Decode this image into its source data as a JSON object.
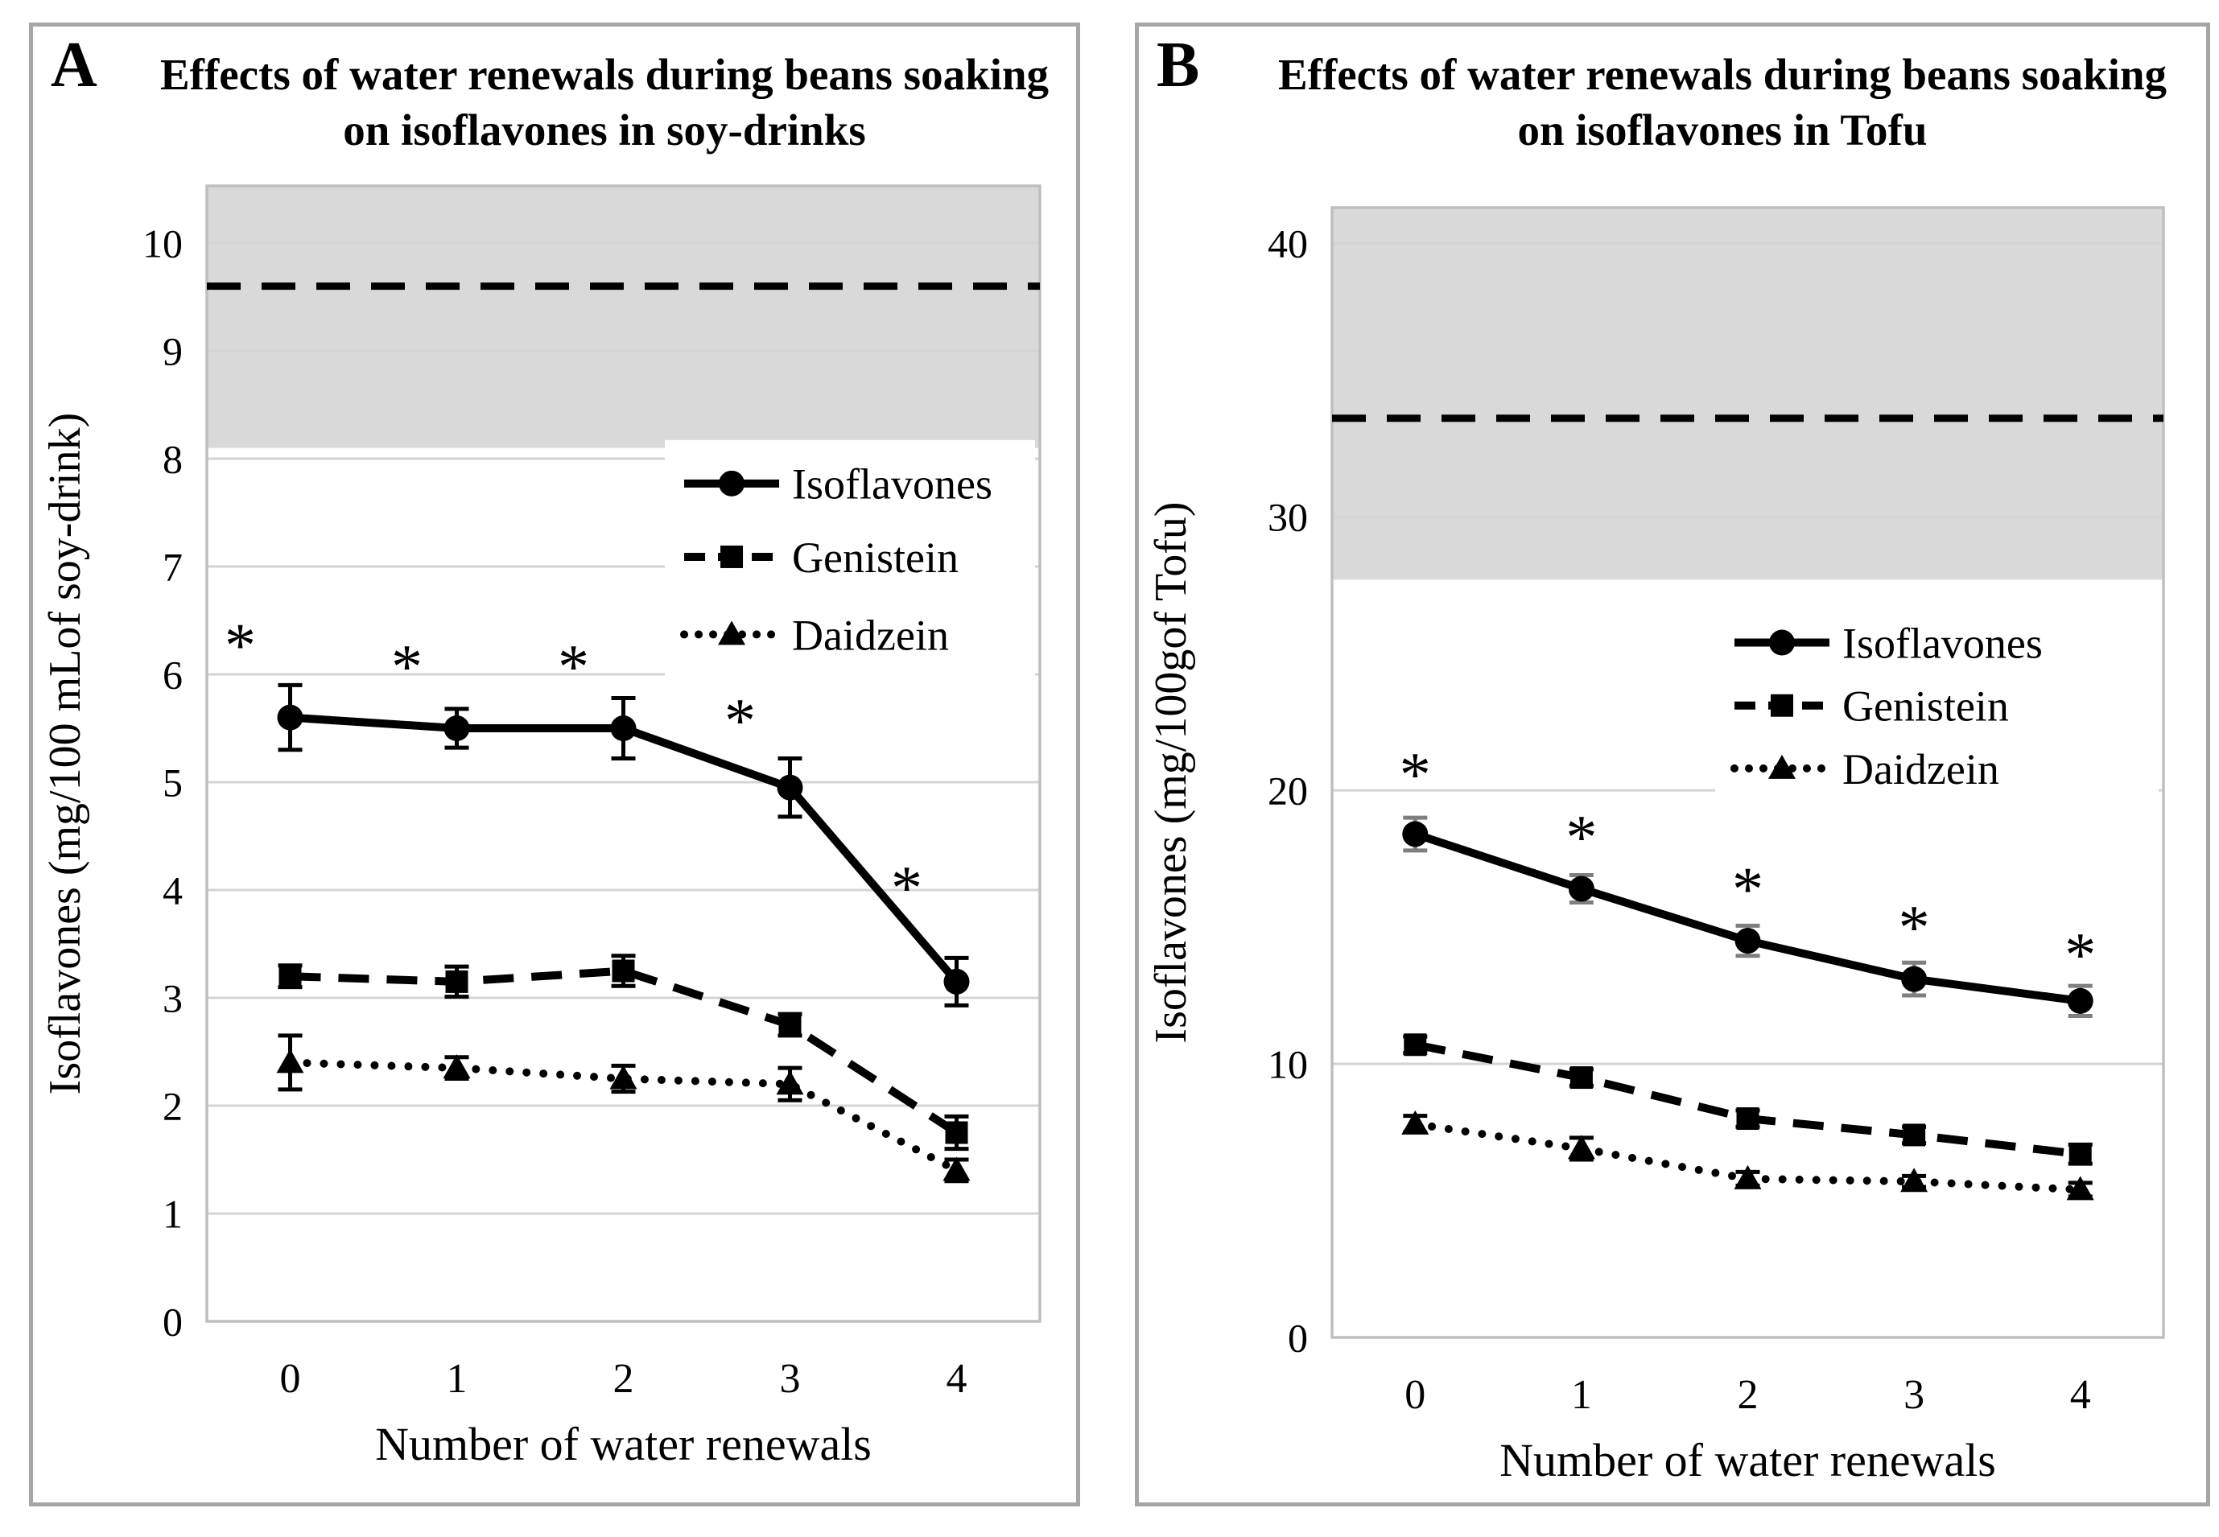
{
  "panels": [
    {
      "label": "A"
    },
    {
      "label": "B"
    }
  ],
  "colors": {
    "series": "#000000",
    "band_fill": "#d9d9d9",
    "gridline": "#d4d4d4",
    "plot_border": "#bfbfbf",
    "panel_border": "#a6a6a6",
    "error_bar_b_isoflavones": "#7f7f7f"
  },
  "chart_data": [
    {
      "type": "line",
      "title": "Effects of water renewals during beans soaking on isoflavones in soy-drinks",
      "xlabel": "Number of water renewals",
      "ylabel": "Isoflavones (mg/100 mLof soy-drink)",
      "categories": [
        "0",
        "1",
        "2",
        "3",
        "4"
      ],
      "ytick_labels": [
        "0",
        "1",
        "2",
        "3",
        "4",
        "5",
        "6",
        "7",
        "8",
        "9",
        "10"
      ],
      "yticks": [
        0,
        1,
        2,
        3,
        4,
        5,
        6,
        7,
        8,
        9,
        10
      ],
      "ylim": [
        0,
        10.53
      ],
      "grid": true,
      "legend_position": "inside-upper-right",
      "shaded_band": {
        "from": 8.1,
        "to": 10.53
      },
      "reference_line": {
        "y": 9.6,
        "style": "dashed"
      },
      "series": [
        {
          "name": "Isoflavones",
          "marker": "circle",
          "line": "solid",
          "values": [
            5.6,
            5.5,
            5.5,
            4.95,
            3.15
          ],
          "errors": [
            0.3,
            0.18,
            0.28,
            0.27,
            0.22
          ],
          "error_color": "#000000"
        },
        {
          "name": "Genistein",
          "marker": "square",
          "line": "dashed",
          "values": [
            3.2,
            3.15,
            3.25,
            2.75,
            1.75
          ],
          "errors": [
            0.1,
            0.14,
            0.14,
            0.1,
            0.15
          ],
          "error_color": "#000000"
        },
        {
          "name": "Daidzein",
          "marker": "triangle",
          "line": "dotted",
          "values": [
            2.4,
            2.35,
            2.25,
            2.2,
            1.4
          ],
          "errors": [
            0.25,
            0.1,
            0.12,
            0.15,
            0.1
          ],
          "error_color": "#000000"
        }
      ],
      "significance_marks": {
        "symbol": "*",
        "series": "Isoflavones",
        "y_positions": [
          6.3,
          6.1,
          6.1,
          5.6,
          4.05
        ]
      }
    },
    {
      "type": "line",
      "title": "Effects of water renewals during beans soaking on isoflavones in Tofu",
      "xlabel": "Number of water renewals",
      "ylabel": "Isoflavones (mg/100gof Tofu)",
      "categories": [
        "0",
        "1",
        "2",
        "3",
        "4"
      ],
      "ytick_labels": [
        "0",
        "10",
        "20",
        "30",
        "40"
      ],
      "yticks": [
        0,
        10,
        20,
        30,
        40
      ],
      "ylim": [
        0,
        41.3
      ],
      "grid": true,
      "legend_position": "inside-middle-right",
      "shaded_band": {
        "from": 27.7,
        "to": 41.3
      },
      "reference_line": {
        "y": 33.6,
        "style": "dashed"
      },
      "series": [
        {
          "name": "Isoflavones",
          "marker": "circle",
          "line": "solid",
          "values": [
            18.4,
            16.4,
            14.5,
            13.1,
            12.3
          ],
          "errors": [
            0.6,
            0.5,
            0.55,
            0.6,
            0.55
          ],
          "error_color": "#7f7f7f"
        },
        {
          "name": "Genistein",
          "marker": "square",
          "line": "dashed",
          "values": [
            10.7,
            9.5,
            8.0,
            7.4,
            6.7
          ],
          "errors": [
            0.3,
            0.3,
            0.3,
            0.3,
            0.35
          ],
          "error_color": "#000000"
        },
        {
          "name": "Daidzein",
          "marker": "triangle",
          "line": "dotted",
          "values": [
            7.8,
            6.9,
            5.8,
            5.7,
            5.4
          ],
          "errors": [
            0.3,
            0.4,
            0.25,
            0.2,
            0.25
          ],
          "error_color": "#000000"
        }
      ],
      "significance_marks": {
        "symbol": "*",
        "series": "Isoflavones",
        "y_positions": [
          20.7,
          18.4,
          16.5,
          15.1,
          14.1
        ]
      }
    }
  ]
}
